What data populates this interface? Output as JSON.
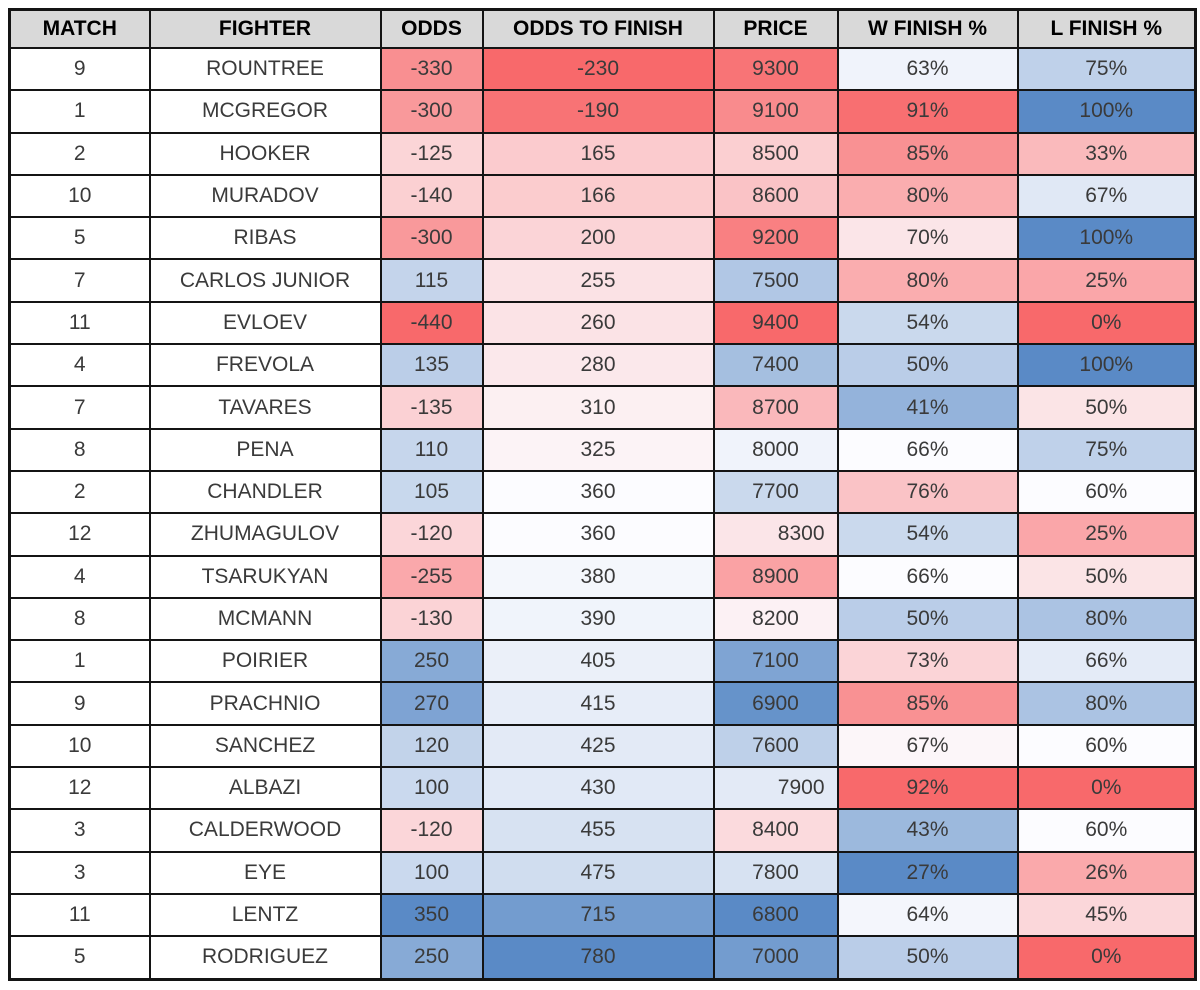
{
  "table": {
    "columns": [
      "MATCH",
      "FIGHTER",
      "ODDS",
      "ODDS TO FINISH",
      "PRICE",
      "W FINISH %",
      "L FINISH %"
    ],
    "column_keys": [
      "match",
      "fighter",
      "odds",
      "odds-to-finish",
      "price",
      "w-finish-pct",
      "l-finish-pct"
    ],
    "rows": [
      {
        "cells": [
          {
            "value": "9"
          },
          {
            "value": "ROUNTREE"
          },
          {
            "value": "-330",
            "bg": "#F98F91"
          },
          {
            "value": "-230",
            "bg": "#F8696B"
          },
          {
            "value": "9300",
            "bg": "#F87476"
          },
          {
            "value": "63%",
            "bg": "#F0F3FB"
          },
          {
            "value": "75%",
            "bg": "#BFD1EA"
          }
        ]
      },
      {
        "cells": [
          {
            "value": "1"
          },
          {
            "value": "MCGREGOR"
          },
          {
            "value": "-300",
            "bg": "#F9999B"
          },
          {
            "value": "-190",
            "bg": "#F87375"
          },
          {
            "value": "9100",
            "bg": "#F98B8D"
          },
          {
            "value": "91%",
            "bg": "#F86F71"
          },
          {
            "value": "100%",
            "bg": "#5A8AC6"
          }
        ]
      },
      {
        "cells": [
          {
            "value": "2"
          },
          {
            "value": "HOOKER"
          },
          {
            "value": "-125",
            "bg": "#FBD5D7"
          },
          {
            "value": "165",
            "bg": "#FBCBCE"
          },
          {
            "value": "8500",
            "bg": "#FBCFD1"
          },
          {
            "value": "85%",
            "bg": "#F99193"
          },
          {
            "value": "33%",
            "bg": "#FABABC"
          }
        ]
      },
      {
        "cells": [
          {
            "value": "10"
          },
          {
            "value": "MURADOV"
          },
          {
            "value": "-140",
            "bg": "#FBD0D2"
          },
          {
            "value": "166",
            "bg": "#FBCCCE"
          },
          {
            "value": "8600",
            "bg": "#FAC3C6"
          },
          {
            "value": "80%",
            "bg": "#FAADAF"
          },
          {
            "value": "67%",
            "bg": "#E0E8F5"
          }
        ]
      },
      {
        "cells": [
          {
            "value": "5"
          },
          {
            "value": "RIBAS"
          },
          {
            "value": "-300",
            "bg": "#F9999B"
          },
          {
            "value": "200",
            "bg": "#FBD4D7"
          },
          {
            "value": "9200",
            "bg": "#F98082"
          },
          {
            "value": "70%",
            "bg": "#FBE5E8"
          },
          {
            "value": "100%",
            "bg": "#5A8AC6"
          }
        ]
      },
      {
        "cells": [
          {
            "value": "7"
          },
          {
            "value": "CARLOS JUNIOR"
          },
          {
            "value": "115",
            "bg": "#C4D4EB"
          },
          {
            "value": "255",
            "bg": "#FBE2E5"
          },
          {
            "value": "7500",
            "bg": "#B1C7E5"
          },
          {
            "value": "80%",
            "bg": "#FAADAF"
          },
          {
            "value": "25%",
            "bg": "#FAA6A9"
          }
        ]
      },
      {
        "cells": [
          {
            "value": "11"
          },
          {
            "value": "EVLOEV"
          },
          {
            "value": "-440",
            "bg": "#F8696B"
          },
          {
            "value": "260",
            "bg": "#FBE3E6"
          },
          {
            "value": "9400",
            "bg": "#F8696B"
          },
          {
            "value": "54%",
            "bg": "#CAD9ED"
          },
          {
            "value": "0%",
            "bg": "#F8696B"
          }
        ]
      },
      {
        "cells": [
          {
            "value": "4"
          },
          {
            "value": "FREVOLA"
          },
          {
            "value": "135",
            "bg": "#BBCEE8"
          },
          {
            "value": "280",
            "bg": "#FBE8EB"
          },
          {
            "value": "7400",
            "bg": "#A5BFE0"
          },
          {
            "value": "50%",
            "bg": "#BACDE8"
          },
          {
            "value": "100%",
            "bg": "#5A8AC6"
          }
        ]
      },
      {
        "cells": [
          {
            "value": "7"
          },
          {
            "value": "TAVARES"
          },
          {
            "value": "-135",
            "bg": "#FBD1D4"
          },
          {
            "value": "310",
            "bg": "#FCF0F2"
          },
          {
            "value": "8700",
            "bg": "#FAB8BB"
          },
          {
            "value": "41%",
            "bg": "#94B3DB"
          },
          {
            "value": "50%",
            "bg": "#FBE4E6"
          }
        ]
      },
      {
        "cells": [
          {
            "value": "8"
          },
          {
            "value": "PENA"
          },
          {
            "value": "110",
            "bg": "#C6D6EC"
          },
          {
            "value": "325",
            "bg": "#FCF3F6"
          },
          {
            "value": "8000",
            "bg": "#F0F3FB"
          },
          {
            "value": "66%",
            "bg": "#FCFCFF"
          },
          {
            "value": "75%",
            "bg": "#BFD1EA"
          }
        ]
      },
      {
        "cells": [
          {
            "value": "2"
          },
          {
            "value": "CHANDLER"
          },
          {
            "value": "105",
            "bg": "#C8D8ED"
          },
          {
            "value": "360",
            "bg": "#FCFCFF"
          },
          {
            "value": "7700",
            "bg": "#CAD9ED"
          },
          {
            "value": "76%",
            "bg": "#FAC3C6"
          },
          {
            "value": "60%",
            "bg": "#FCFCFF"
          }
        ]
      },
      {
        "cells": [
          {
            "value": "12"
          },
          {
            "value": "ZHUMAGULOV"
          },
          {
            "value": "-120",
            "bg": "#FBD6D9"
          },
          {
            "value": "360",
            "bg": "#FCFCFF"
          },
          {
            "value": "8300",
            "bg": "#FBE5E8",
            "align": "right"
          },
          {
            "value": "54%",
            "bg": "#CAD9ED"
          },
          {
            "value": "25%",
            "bg": "#FAA6A9"
          }
        ]
      },
      {
        "cells": [
          {
            "value": "4"
          },
          {
            "value": "TSARUKYAN"
          },
          {
            "value": "-255",
            "bg": "#FAA8AB"
          },
          {
            "value": "380",
            "bg": "#F4F7FC"
          },
          {
            "value": "8900",
            "bg": "#FAA2A4"
          },
          {
            "value": "66%",
            "bg": "#FCFCFF"
          },
          {
            "value": "50%",
            "bg": "#FBE4E6"
          }
        ]
      },
      {
        "cells": [
          {
            "value": "8"
          },
          {
            "value": "MCMANN"
          },
          {
            "value": "-130",
            "bg": "#FBD3D6"
          },
          {
            "value": "390",
            "bg": "#F0F4FB"
          },
          {
            "value": "8200",
            "bg": "#FCF1F4"
          },
          {
            "value": "50%",
            "bg": "#BACDE8"
          },
          {
            "value": "80%",
            "bg": "#ABC3E3"
          }
        ]
      },
      {
        "cells": [
          {
            "value": "1"
          },
          {
            "value": "POIRIER"
          },
          {
            "value": "250",
            "bg": "#87AAD6"
          },
          {
            "value": "405",
            "bg": "#EBF0F9"
          },
          {
            "value": "7100",
            "bg": "#7FA4D3"
          },
          {
            "value": "73%",
            "bg": "#FBD4D7"
          },
          {
            "value": "66%",
            "bg": "#E4EBF7"
          }
        ]
      },
      {
        "cells": [
          {
            "value": "9"
          },
          {
            "value": "PRACHNIO"
          },
          {
            "value": "270",
            "bg": "#7EA3D3"
          },
          {
            "value": "415",
            "bg": "#E7EDF8"
          },
          {
            "value": "6900",
            "bg": "#6693CA"
          },
          {
            "value": "85%",
            "bg": "#F99193"
          },
          {
            "value": "80%",
            "bg": "#ABC3E3"
          }
        ]
      },
      {
        "cells": [
          {
            "value": "10"
          },
          {
            "value": "SANCHEZ"
          },
          {
            "value": "120",
            "bg": "#C2D3EA"
          },
          {
            "value": "425",
            "bg": "#E3EAF6"
          },
          {
            "value": "7600",
            "bg": "#BED0E9"
          },
          {
            "value": "67%",
            "bg": "#FCF6F9"
          },
          {
            "value": "60%",
            "bg": "#FCFCFF"
          }
        ]
      },
      {
        "cells": [
          {
            "value": "12"
          },
          {
            "value": "ALBAZI"
          },
          {
            "value": "100",
            "bg": "#CAD9EE"
          },
          {
            "value": "430",
            "bg": "#E1E9F6"
          },
          {
            "value": "7900",
            "bg": "#E3EAF6",
            "align": "right"
          },
          {
            "value": "92%",
            "bg": "#F8696B"
          },
          {
            "value": "0%",
            "bg": "#F8696B"
          }
        ]
      },
      {
        "cells": [
          {
            "value": "3"
          },
          {
            "value": "CALDERWOOD"
          },
          {
            "value": "-120",
            "bg": "#FBD6D9"
          },
          {
            "value": "455",
            "bg": "#D7E2F2"
          },
          {
            "value": "8400",
            "bg": "#FBDADD"
          },
          {
            "value": "43%",
            "bg": "#9CB9DD"
          },
          {
            "value": "60%",
            "bg": "#FCFCFF"
          }
        ]
      },
      {
        "cells": [
          {
            "value": "3"
          },
          {
            "value": "EYE"
          },
          {
            "value": "100",
            "bg": "#CAD9EE"
          },
          {
            "value": "475",
            "bg": "#D0DDEF"
          },
          {
            "value": "7800",
            "bg": "#D7E2F2"
          },
          {
            "value": "27%",
            "bg": "#5A8AC6"
          },
          {
            "value": "26%",
            "bg": "#FAA9AB"
          }
        ]
      },
      {
        "cells": [
          {
            "value": "11"
          },
          {
            "value": "LENTZ"
          },
          {
            "value": "350",
            "bg": "#5A8AC6"
          },
          {
            "value": "715",
            "bg": "#739CCF"
          },
          {
            "value": "6800",
            "bg": "#5A8AC6"
          },
          {
            "value": "64%",
            "bg": "#F4F6FC"
          },
          {
            "value": "45%",
            "bg": "#FBD7DA"
          }
        ]
      },
      {
        "cells": [
          {
            "value": "5"
          },
          {
            "value": "RODRIGUEZ"
          },
          {
            "value": "250",
            "bg": "#87AAD6"
          },
          {
            "value": "780",
            "bg": "#5A8AC6"
          },
          {
            "value": "7000",
            "bg": "#739CCF"
          },
          {
            "value": "50%",
            "bg": "#BACDE8"
          },
          {
            "value": "0%",
            "bg": "#F8696B"
          }
        ]
      }
    ]
  },
  "colors": {
    "header_bg": "#D9D9D9",
    "border": "#141414",
    "cell_text": "#3A3A3A",
    "header_text": "#000000",
    "scale_red": "#F8696B",
    "scale_white": "#FCFCFF",
    "scale_blue": "#5A8AC6"
  },
  "chart_data": {
    "type": "table",
    "title": "",
    "columns": [
      "MATCH",
      "FIGHTER",
      "ODDS",
      "ODDS TO FINISH",
      "PRICE",
      "W FINISH %",
      "L FINISH %"
    ],
    "rows": [
      [
        9,
        "ROUNTREE",
        -330,
        -230,
        9300,
        63,
        75
      ],
      [
        1,
        "MCGREGOR",
        -300,
        -190,
        9100,
        91,
        100
      ],
      [
        2,
        "HOOKER",
        -125,
        165,
        8500,
        85,
        33
      ],
      [
        10,
        "MURADOV",
        -140,
        166,
        8600,
        80,
        67
      ],
      [
        5,
        "RIBAS",
        -300,
        200,
        9200,
        70,
        100
      ],
      [
        7,
        "CARLOS JUNIOR",
        115,
        255,
        7500,
        80,
        25
      ],
      [
        11,
        "EVLOEV",
        -440,
        260,
        9400,
        54,
        0
      ],
      [
        4,
        "FREVOLA",
        135,
        280,
        7400,
        50,
        100
      ],
      [
        7,
        "TAVARES",
        -135,
        310,
        8700,
        41,
        50
      ],
      [
        8,
        "PENA",
        110,
        325,
        8000,
        66,
        75
      ],
      [
        2,
        "CHANDLER",
        105,
        360,
        7700,
        76,
        60
      ],
      [
        12,
        "ZHUMAGULOV",
        -120,
        360,
        8300,
        54,
        25
      ],
      [
        4,
        "TSARUKYAN",
        -255,
        380,
        8900,
        66,
        50
      ],
      [
        8,
        "MCMANN",
        -130,
        390,
        8200,
        50,
        80
      ],
      [
        1,
        "POIRIER",
        250,
        405,
        7100,
        73,
        66
      ],
      [
        9,
        "PRACHNIO",
        270,
        415,
        6900,
        85,
        80
      ],
      [
        10,
        "SANCHEZ",
        120,
        425,
        7600,
        67,
        60
      ],
      [
        12,
        "ALBAZI",
        100,
        430,
        7900,
        92,
        0
      ],
      [
        3,
        "CALDERWOOD",
        -120,
        455,
        8400,
        43,
        60
      ],
      [
        3,
        "EYE",
        100,
        475,
        7800,
        27,
        26
      ],
      [
        11,
        "LENTZ",
        350,
        715,
        6800,
        64,
        45
      ],
      [
        5,
        "RODRIGUEZ",
        250,
        780,
        7000,
        50,
        0
      ]
    ],
    "layout_hints": {
      "conditional_formatting": "diverging red-white-blue color scale per column (Excel style)",
      "w_finish_scale": "red at max, blue at min",
      "l_finish_scale": "red at min, blue at max",
      "price_scale": "red at max, blue at min",
      "odds_scales": "red at min (favorites), blue at max (underdogs)"
    }
  }
}
